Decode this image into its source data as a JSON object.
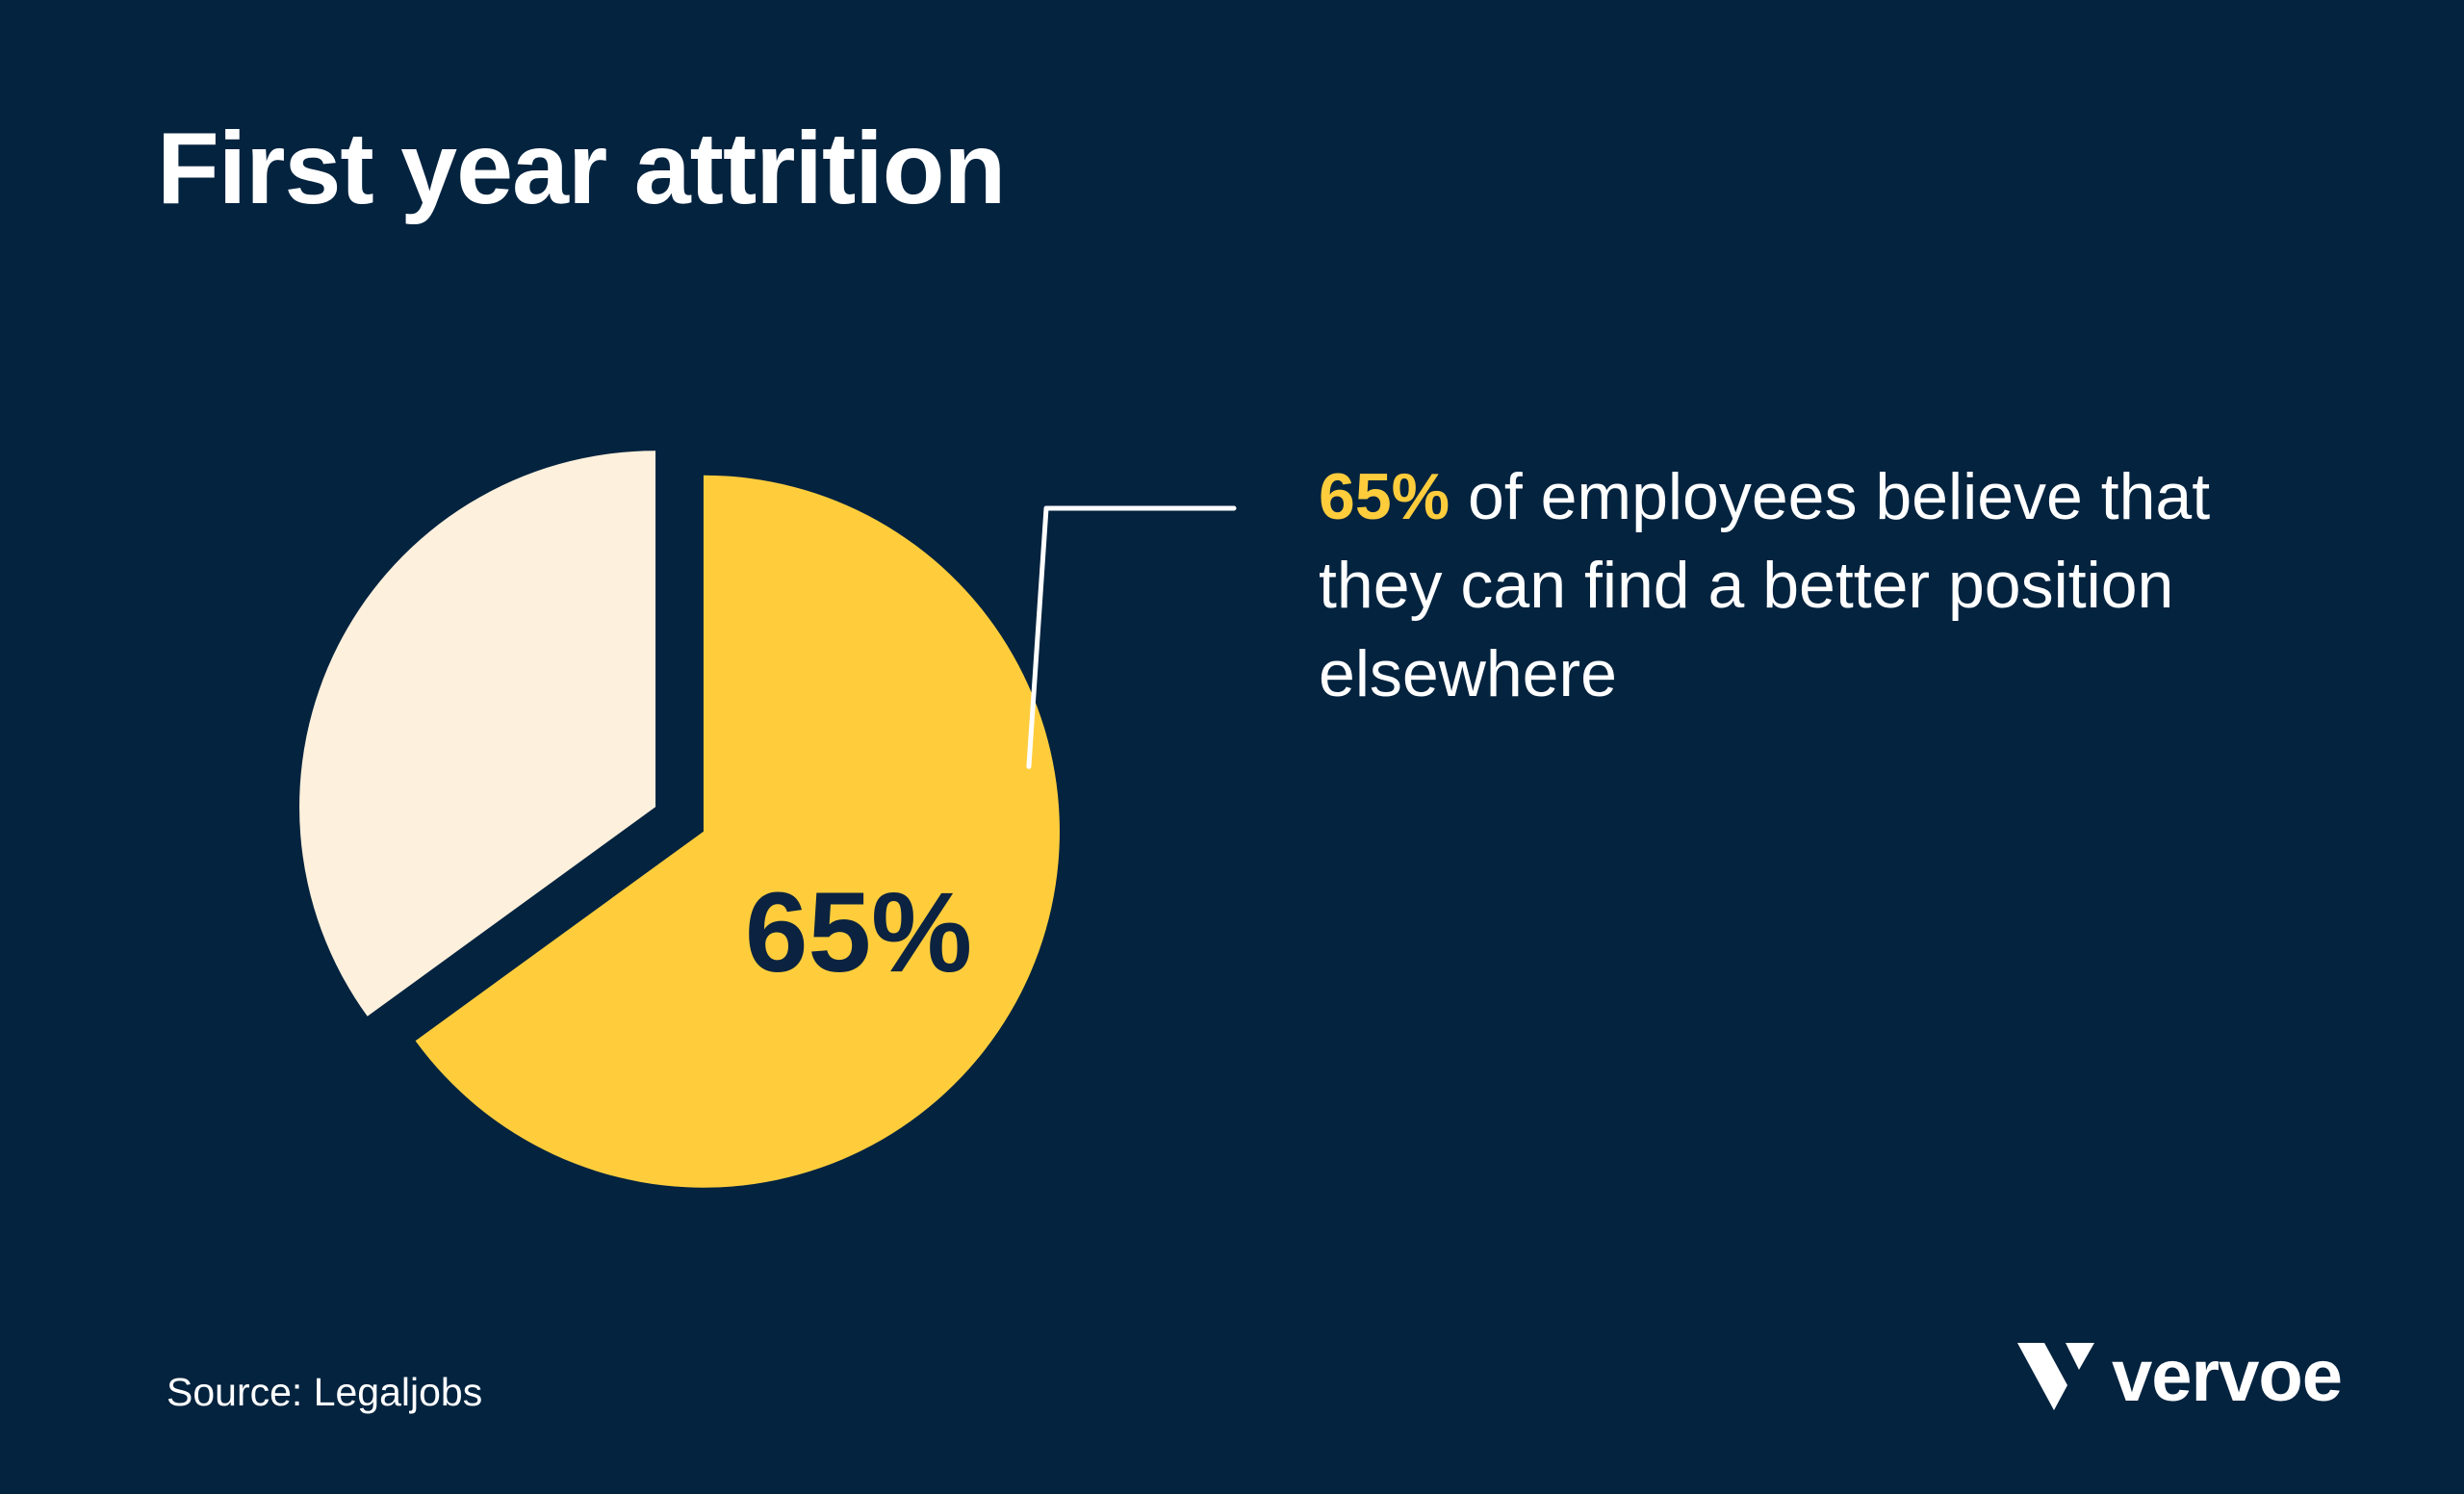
{
  "title": "First year attrition",
  "chart_data": {
    "type": "pie",
    "title": "First year attrition",
    "slices": [
      {
        "label": "65%",
        "value": 65,
        "color": "#FFCD3C"
      },
      {
        "label": "",
        "value": 35,
        "color": "#FDF0DC"
      }
    ]
  },
  "callout": {
    "highlight": "65%",
    "text": " of employees believe that they can find a better position elsewhere"
  },
  "source": "Source: Legaljobs",
  "brand": {
    "name": "vervoe",
    "logo_icon": "v-mark-icon"
  },
  "colors": {
    "background": "#03233F",
    "accent": "#FFCD3C",
    "secondary": "#FDF0DC",
    "text": "#FFFFFF",
    "label_dark": "#0B2340"
  }
}
